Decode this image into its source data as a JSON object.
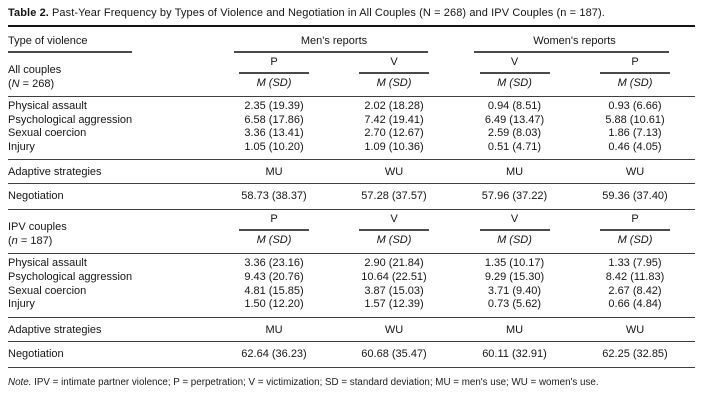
{
  "title": {
    "label": "Table 2.",
    "text": "Past-Year Frequency by Types of Violence and Negotiation in All Couples (N = 268) and IPV Couples (n = 187)."
  },
  "header": {
    "col1": "Type of violence",
    "groups": [
      "Men's reports",
      "Women's reports"
    ]
  },
  "msd_label": "M (SD)",
  "blocks": [
    {
      "group_line1": "All couples",
      "group_n": {
        "pre": "(",
        "italic": "N",
        "post": " = 268)"
      },
      "measure_cols": [
        "P",
        "V",
        "V",
        "P"
      ],
      "rows": [
        {
          "label": "Physical assault",
          "values": [
            "2.35 (19.39)",
            "2.02 (18.28)",
            "0.94 (8.51)",
            "0.93 (6.66)"
          ]
        },
        {
          "label": "Psychological aggression",
          "values": [
            "6.58 (17.86)",
            "7.42 (19.41)",
            "6.49 (13.47)",
            "5.88 (10.61)"
          ]
        },
        {
          "label": "Sexual coercion",
          "values": [
            "3.36 (13.41)",
            "2.70 (12.67)",
            "2.59 (8.03)",
            "1.86 (7.13)"
          ]
        },
        {
          "label": "Injury",
          "values": [
            "1.05 (10.20)",
            "1.09 (10.36)",
            "0.51 (4.71)",
            "0.46 (4.05)"
          ]
        }
      ],
      "adaptive_label": "Adaptive strategies",
      "adaptive_cols": [
        "MU",
        "WU",
        "MU",
        "WU"
      ],
      "negotiation_label": "Negotiation",
      "negotiation_values": [
        "58.73 (38.37)",
        "57.28 (37.57)",
        "57.96 (37.22)",
        "59.36 (37.40)"
      ]
    },
    {
      "group_line1": "IPV couples",
      "group_n": {
        "pre": "(",
        "italic": "n",
        "post": " = 187)"
      },
      "measure_cols": [
        "P",
        "V",
        "V",
        "P"
      ],
      "rows": [
        {
          "label": "Physical assault",
          "values": [
            "3.36 (23.16)",
            "2.90 (21.84)",
            "1.35 (10.17)",
            "1.33 (7.95)"
          ]
        },
        {
          "label": "Psychological aggression",
          "values": [
            "9.43 (20.76)",
            "10.64 (22.51)",
            "9.29 (15.30)",
            "8.42 (11.83)"
          ]
        },
        {
          "label": "Sexual coercion",
          "values": [
            "4.81 (15.85)",
            "3.87 (15.03)",
            "3.71 (9.40)",
            "2.67 (8.42)"
          ]
        },
        {
          "label": "Injury",
          "values": [
            "1.50 (12.20)",
            "1.57 (12.39)",
            "0.73 (5.62)",
            "0.66 (4.84)"
          ]
        }
      ],
      "adaptive_label": "Adaptive strategies",
      "adaptive_cols": [
        "MU",
        "WU",
        "MU",
        "WU"
      ],
      "negotiation_label": "Negotiation",
      "negotiation_values": [
        "62.64 (36.23)",
        "60.68 (35.47)",
        "60.11 (32.91)",
        "62.25 (32.85)"
      ]
    }
  ],
  "note": {
    "italic": "Note.",
    "text": " IPV = intimate partner violence; P = perpetration; V = victimization; SD = standard deviation; MU = men's use; WU = women's use."
  },
  "colors": {
    "text": "#151515",
    "rule_heavy": "#141414",
    "rule_light": "#4a4a4a",
    "background": "#ffffff"
  }
}
